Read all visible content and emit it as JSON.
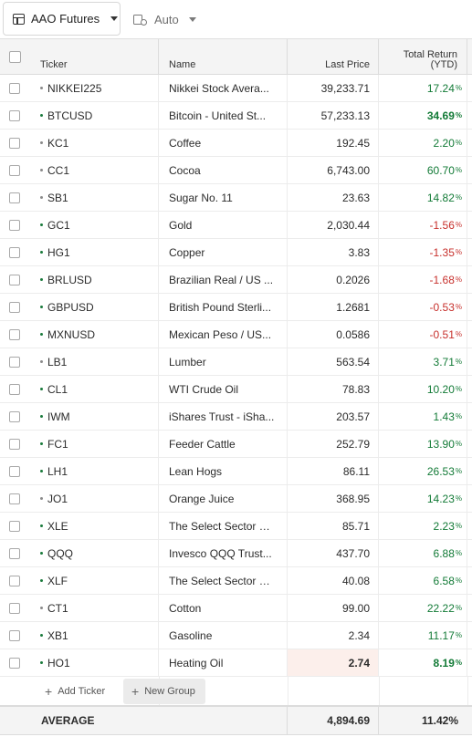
{
  "toolbar": {
    "list_name": "AAO Futures",
    "mode_label": "Auto"
  },
  "columns": {
    "ticker": "Ticker",
    "name": "Name",
    "last_price": "Last Price",
    "total_return_line1": "Total Return",
    "total_return_line2": "(YTD)"
  },
  "rows": [
    {
      "ticker": "NIKKEI225",
      "name": "Nikkei Stock Avera...",
      "last_price": "39,233.71",
      "total_return": "17.24",
      "direction": "pos",
      "dot": "gray"
    },
    {
      "ticker": "BTCUSD",
      "name": "Bitcoin - United St...",
      "last_price": "57,233.13",
      "total_return": "34.69",
      "direction": "pos",
      "dot": "green"
    },
    {
      "ticker": "KC1",
      "name": "Coffee",
      "last_price": "192.45",
      "total_return": "2.20",
      "direction": "pos",
      "dot": "gray"
    },
    {
      "ticker": "CC1",
      "name": "Cocoa",
      "last_price": "6,743.00",
      "total_return": "60.70",
      "direction": "pos",
      "dot": "gray"
    },
    {
      "ticker": "SB1",
      "name": "Sugar No. 11",
      "last_price": "23.63",
      "total_return": "14.82",
      "direction": "pos",
      "dot": "gray"
    },
    {
      "ticker": "GC1",
      "name": "Gold",
      "last_price": "2,030.44",
      "total_return": "-1.56",
      "direction": "neg",
      "dot": "green"
    },
    {
      "ticker": "HG1",
      "name": "Copper",
      "last_price": "3.83",
      "total_return": "-1.35",
      "direction": "neg",
      "dot": "green"
    },
    {
      "ticker": "BRLUSD",
      "name": "Brazilian Real / US ...",
      "last_price": "0.2026",
      "total_return": "-1.68",
      "direction": "neg",
      "dot": "green"
    },
    {
      "ticker": "GBPUSD",
      "name": "British Pound Sterli...",
      "last_price": "1.2681",
      "total_return": "-0.53",
      "direction": "neg",
      "dot": "green"
    },
    {
      "ticker": "MXNUSD",
      "name": "Mexican Peso / US...",
      "last_price": "0.0586",
      "total_return": "-0.51",
      "direction": "neg",
      "dot": "green"
    },
    {
      "ticker": "LB1",
      "name": "Lumber",
      "last_price": "563.54",
      "total_return": "3.71",
      "direction": "pos",
      "dot": "gray"
    },
    {
      "ticker": "CL1",
      "name": "WTI Crude Oil",
      "last_price": "78.83",
      "total_return": "10.20",
      "direction": "pos",
      "dot": "green"
    },
    {
      "ticker": "IWM",
      "name": "iShares Trust - iSha...",
      "last_price": "203.57",
      "total_return": "1.43",
      "direction": "pos",
      "dot": "green"
    },
    {
      "ticker": "FC1",
      "name": "Feeder Cattle",
      "last_price": "252.79",
      "total_return": "13.90",
      "direction": "pos",
      "dot": "green"
    },
    {
      "ticker": "LH1",
      "name": "Lean Hogs",
      "last_price": "86.11",
      "total_return": "26.53",
      "direction": "pos",
      "dot": "green"
    },
    {
      "ticker": "JO1",
      "name": "Orange Juice",
      "last_price": "368.95",
      "total_return": "14.23",
      "direction": "pos",
      "dot": "gray"
    },
    {
      "ticker": "XLE",
      "name": "The Select Sector S...",
      "last_price": "85.71",
      "total_return": "2.23",
      "direction": "pos",
      "dot": "green"
    },
    {
      "ticker": "QQQ",
      "name": "Invesco QQQ Trust...",
      "last_price": "437.70",
      "total_return": "6.88",
      "direction": "pos",
      "dot": "green"
    },
    {
      "ticker": "XLF",
      "name": "The Select Sector S...",
      "last_price": "40.08",
      "total_return": "6.58",
      "direction": "pos",
      "dot": "green"
    },
    {
      "ticker": "CT1",
      "name": "Cotton",
      "last_price": "99.00",
      "total_return": "22.22",
      "direction": "pos",
      "dot": "gray"
    },
    {
      "ticker": "XB1",
      "name": "Gasoline",
      "last_price": "2.34",
      "total_return": "11.17",
      "direction": "pos",
      "dot": "green"
    },
    {
      "ticker": "HO1",
      "name": "Heating Oil",
      "last_price": "2.74",
      "total_return": "8.19",
      "direction": "pos",
      "dot": "green",
      "highlighted": true
    }
  ],
  "percent_suffix": "%",
  "actions": {
    "add_ticker": "Add Ticker",
    "new_group": "New Group"
  },
  "average": {
    "label": "AVERAGE",
    "last_price": "4,894.69",
    "total_return": "11.42%"
  },
  "colors": {
    "positive": "#127a36",
    "negative": "#c7302c",
    "highlight": "#fcefeb"
  }
}
